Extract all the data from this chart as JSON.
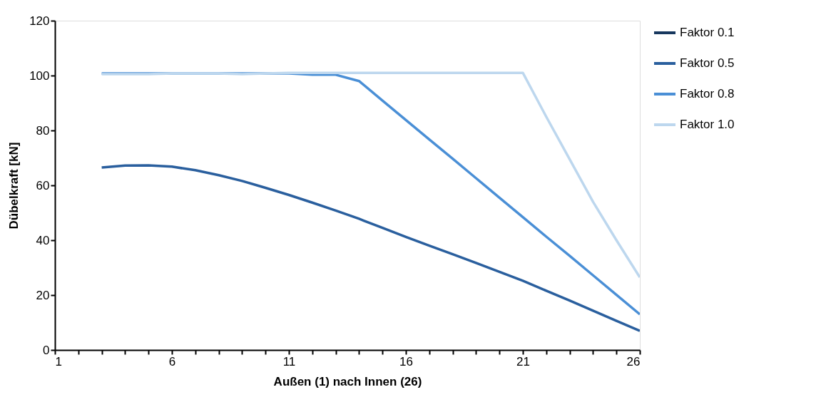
{
  "chart_data": {
    "type": "line",
    "xlabel": "Außen (1) nach Innen (26)",
    "ylabel": "Dübelkraft [kN]",
    "x": [
      3,
      4,
      5,
      6,
      7,
      8,
      9,
      10,
      11,
      12,
      13,
      14,
      15,
      16,
      17,
      18,
      19,
      20,
      21,
      22,
      23,
      24,
      25,
      26
    ],
    "series": [
      {
        "name": "Faktor 0.1",
        "color": "#17375e",
        "values": [
          null,
          null,
          null,
          null,
          null,
          null,
          null,
          null,
          null,
          null,
          null,
          null,
          null,
          null,
          null,
          null,
          null,
          null,
          null,
          null,
          null,
          null,
          null,
          null
        ]
      },
      {
        "name": "Faktor 0.5",
        "color": "#2a5f9e",
        "values": [
          66.5,
          67.2,
          67.3,
          66.8,
          65.5,
          63.7,
          61.6,
          59.1,
          56.5,
          53.7,
          50.8,
          47.8,
          44.5,
          41.2,
          38,
          34.9,
          31.7,
          28.5,
          25.2,
          21.6,
          18,
          14.3,
          10.6,
          7
        ]
      },
      {
        "name": "Faktor 0.8",
        "color": "#4a8fd6",
        "values": [
          100.8,
          100.8,
          100.8,
          100.8,
          100.8,
          100.8,
          100.8,
          100.8,
          100.8,
          100.3,
          100.3,
          98,
          90.9,
          83.8,
          76.7,
          69.7,
          62.6,
          55.5,
          48.4,
          41.3,
          34.3,
          27.2,
          20.1,
          13
        ]
      },
      {
        "name": "Faktor 1.0",
        "color": "#bdd7ee",
        "values": [
          100.5,
          100.5,
          100.5,
          100.8,
          100.8,
          100.8,
          100.5,
          100.8,
          101,
          101,
          101,
          101,
          101,
          101,
          101,
          101,
          101,
          101,
          101,
          85,
          69.5,
          54,
          40,
          26.5
        ]
      }
    ],
    "xlim": [
      1,
      26
    ],
    "xticks": [
      1,
      {
        "value": 2,
        "label": null
      },
      {
        "value": 3,
        "label": null
      },
      {
        "value": 4,
        "label": null
      },
      {
        "value": 5,
        "label": null
      },
      6,
      {
        "value": 7,
        "label": null
      },
      {
        "value": 8,
        "label": null
      },
      {
        "value": 9,
        "label": null
      },
      {
        "value": 10,
        "label": null
      },
      11,
      {
        "value": 12,
        "label": null
      },
      {
        "value": 13,
        "label": null
      },
      {
        "value": 14,
        "label": null
      },
      {
        "value": 15,
        "label": null
      },
      16,
      {
        "value": 17,
        "label": null
      },
      {
        "value": 18,
        "label": null
      },
      {
        "value": 19,
        "label": null
      },
      {
        "value": 20,
        "label": null
      },
      21,
      {
        "value": 22,
        "label": null
      },
      {
        "value": 23,
        "label": null
      },
      {
        "value": 24,
        "label": null
      },
      {
        "value": 25,
        "label": null
      },
      26
    ],
    "ylim": [
      0,
      120
    ],
    "yticks": [
      0,
      20,
      40,
      60,
      80,
      100,
      120
    ],
    "grid": false,
    "legend": "right",
    "marker": "none",
    "line_style": "solid"
  }
}
